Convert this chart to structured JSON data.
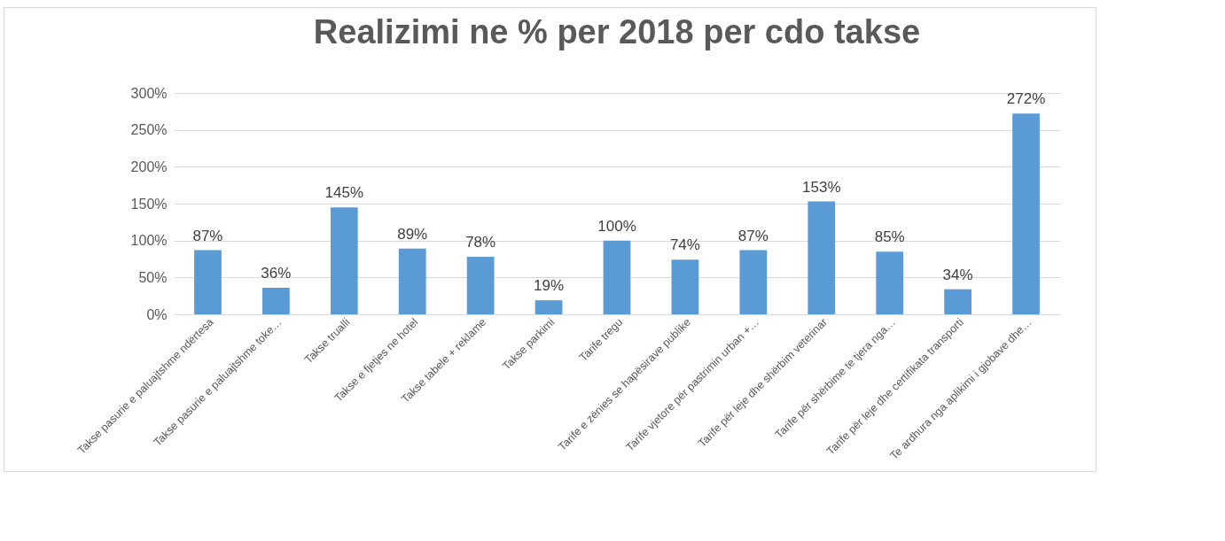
{
  "chart_data": {
    "type": "bar",
    "title": "Realizimi ne % per 2018 per cdo takse",
    "categories": [
      "Takse pasurie e paluajtshme ndërtesa",
      "Takse pasurie e paluajtshme toke…",
      "Takse trualli",
      "Takse e fjetjes ne hotel",
      "Takse tabele + reklame",
      "Takse parkimi",
      "Tarife tregu",
      "Tarife e zënies se hapësirave publike",
      "Tarife vjetore për pastrimin urban +…",
      "Tarife për leje dhe shërbim veterinar",
      "Tarife për shërbime te tjera nga…",
      "Tarife për leje dhe certifikata transporti",
      "Te ardhura nga aplikimi i gjobave dhe…"
    ],
    "values": [
      87,
      36,
      145,
      89,
      78,
      19,
      100,
      74,
      87,
      153,
      85,
      34,
      272
    ],
    "value_labels": [
      "87%",
      "36%",
      "145%",
      "89%",
      "78%",
      "19%",
      "100%",
      "74%",
      "87%",
      "153%",
      "85%",
      "34%",
      "272%"
    ],
    "color": "#5b9bd5",
    "ylim": [
      0,
      300
    ],
    "yticks": [
      {
        "value": 0,
        "label": "0%"
      },
      {
        "value": 50,
        "label": "50%"
      },
      {
        "value": 100,
        "label": "100%"
      },
      {
        "value": 150,
        "label": "150%"
      },
      {
        "value": 200,
        "label": "200%"
      },
      {
        "value": 250,
        "label": "250%"
      },
      {
        "value": 300,
        "label": "300%"
      }
    ],
    "grid": "y"
  }
}
